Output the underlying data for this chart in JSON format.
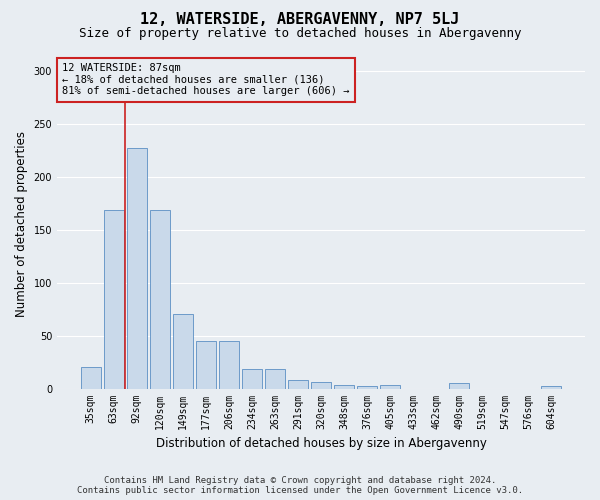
{
  "title": "12, WATERSIDE, ABERGAVENNY, NP7 5LJ",
  "subtitle": "Size of property relative to detached houses in Abergavenny",
  "xlabel": "Distribution of detached houses by size in Abergavenny",
  "ylabel": "Number of detached properties",
  "footer_line1": "Contains HM Land Registry data © Crown copyright and database right 2024.",
  "footer_line2": "Contains public sector information licensed under the Open Government Licence v3.0.",
  "annotation_line1": "12 WATERSIDE: 87sqm",
  "annotation_line2": "← 18% of detached houses are smaller (136)",
  "annotation_line3": "81% of semi-detached houses are larger (606) →",
  "bar_labels": [
    "35sqm",
    "63sqm",
    "92sqm",
    "120sqm",
    "149sqm",
    "177sqm",
    "206sqm",
    "234sqm",
    "263sqm",
    "291sqm",
    "320sqm",
    "348sqm",
    "376sqm",
    "405sqm",
    "433sqm",
    "462sqm",
    "490sqm",
    "519sqm",
    "547sqm",
    "576sqm",
    "604sqm"
  ],
  "bar_values": [
    20,
    168,
    227,
    168,
    70,
    45,
    45,
    18,
    18,
    8,
    6,
    3,
    2,
    3,
    0,
    0,
    5,
    0,
    0,
    0,
    2
  ],
  "bar_color": "#c9d9ea",
  "bar_edge_color": "#5b8fc4",
  "vline_color": "#cc2222",
  "vline_x": 1.5,
  "annotation_box_edge_color": "#cc2222",
  "background_color": "#e8edf2",
  "plot_bg_color": "#e8edf2",
  "ylim": [
    0,
    310
  ],
  "yticks": [
    0,
    50,
    100,
    150,
    200,
    250,
    300
  ],
  "grid_color": "#ffffff",
  "title_fontsize": 11,
  "subtitle_fontsize": 9,
  "xlabel_fontsize": 8.5,
  "ylabel_fontsize": 8.5,
  "tick_fontsize": 7,
  "annotation_fontsize": 7.5,
  "footer_fontsize": 6.5
}
